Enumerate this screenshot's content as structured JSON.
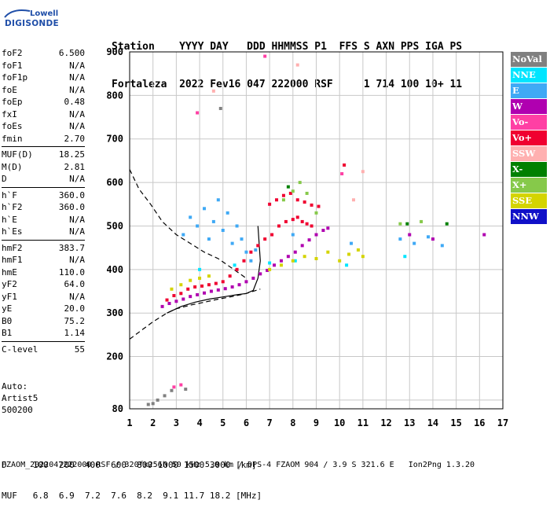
{
  "logo": {
    "line1": "Lowell",
    "line2": "DIGISONDE"
  },
  "header": {
    "line1": "Station    YYYY DAY   DDD HHMMSS P1  FFS S AXN PPS IGA PS",
    "line2": "Fortaleza  2022 Fev16 047 222000 RSF     1 714 100 10+ 11"
  },
  "params": {
    "group1": [
      {
        "label": "foF2",
        "value": "6.500"
      },
      {
        "label": "foF1",
        "value": "N/A"
      },
      {
        "label": "foF1p",
        "value": "N/A"
      },
      {
        "label": "foE",
        "value": "N/A"
      },
      {
        "label": "foEp",
        "value": "0.48"
      },
      {
        "label": "fxI",
        "value": "N/A"
      },
      {
        "label": "foEs",
        "value": "N/A"
      },
      {
        "label": "fmin",
        "value": "2.70"
      }
    ],
    "group2": [
      {
        "label": "MUF(D)",
        "value": "18.25"
      },
      {
        "label": "M(D)",
        "value": "2.81"
      },
      {
        "label": "D",
        "value": "N/A"
      }
    ],
    "group3": [
      {
        "label": "h`F",
        "value": "360.0"
      },
      {
        "label": "h`F2",
        "value": "360.0"
      },
      {
        "label": "h`E",
        "value": "N/A"
      },
      {
        "label": "h`Es",
        "value": "N/A"
      }
    ],
    "group4": [
      {
        "label": "hmF2",
        "value": "383.7"
      },
      {
        "label": "hmF1",
        "value": "N/A"
      },
      {
        "label": "hmE",
        "value": "110.0"
      },
      {
        "label": "yF2",
        "value": "64.0"
      },
      {
        "label": "yF1",
        "value": "N/A"
      },
      {
        "label": "yE",
        "value": "20.0"
      },
      {
        "label": "B0",
        "value": "75.2"
      },
      {
        "label": "B1",
        "value": "1.14"
      }
    ],
    "group5": [
      {
        "label": "C-level",
        "value": "55"
      }
    ]
  },
  "auto": {
    "line1": "Auto:",
    "line2": "Artist5",
    "line3": "500200"
  },
  "legend": [
    {
      "label": "NoVal",
      "color": "#808080"
    },
    {
      "label": "NNE",
      "color": "#00e5ff"
    },
    {
      "label": "E",
      "color": "#3fa9f5"
    },
    {
      "label": "W",
      "color": "#b000b0"
    },
    {
      "label": "Vo-",
      "color": "#ff3fa4"
    },
    {
      "label": "Vo+",
      "color": "#f00030"
    },
    {
      "label": "SSW",
      "color": "#ffb0b0"
    },
    {
      "label": "X-",
      "color": "#008000"
    },
    {
      "label": "X+",
      "color": "#86c94a"
    },
    {
      "label": "SSE",
      "color": "#d4d400"
    },
    {
      "label": "NNW",
      "color": "#1010c8"
    }
  ],
  "footer": {
    "line1": "D     100  200  400  600  800 1000 1500 3000 [km]",
    "line2": "MUF   6.8  6.9  7.2  7.6  8.2  9.1 11.7 18.2 [MHz]",
    "line3": "FZAOM_2022047222000.RSF / 320fx256h 50 kHz 5.0 km / DPS-4 FZAOM 904 / 3.9 S 321.6 E   Ion2Png 1.3.20"
  },
  "chart_data": {
    "type": "scatter",
    "title": "",
    "xlabel": "",
    "ylabel": "",
    "xlim": [
      1,
      17
    ],
    "ylim": [
      80,
      900
    ],
    "x_ticks": [
      1,
      2,
      3,
      4,
      5,
      6,
      7,
      8,
      9,
      10,
      11,
      12,
      13,
      14,
      15,
      16,
      17
    ],
    "y_ticks": [
      80,
      200,
      300,
      400,
      500,
      600,
      700,
      800,
      900
    ],
    "grid": true,
    "legend_position": "right",
    "series": [
      {
        "name": "Vo+",
        "color": "#f00030",
        "points": [
          [
            2.6,
            330
          ],
          [
            2.9,
            340
          ],
          [
            3.2,
            345
          ],
          [
            3.5,
            355
          ],
          [
            3.8,
            360
          ],
          [
            4.1,
            362
          ],
          [
            4.4,
            365
          ],
          [
            4.7,
            368
          ],
          [
            5.0,
            372
          ],
          [
            5.3,
            385
          ],
          [
            5.6,
            400
          ],
          [
            5.9,
            420
          ],
          [
            6.2,
            440
          ],
          [
            6.5,
            455
          ],
          [
            6.8,
            470
          ],
          [
            7.1,
            480
          ],
          [
            7.4,
            500
          ],
          [
            7.7,
            510
          ],
          [
            8.0,
            515
          ],
          [
            8.2,
            520
          ],
          [
            8.4,
            510
          ],
          [
            8.6,
            505
          ],
          [
            8.8,
            500
          ],
          [
            7.0,
            550
          ],
          [
            7.3,
            560
          ],
          [
            7.6,
            570
          ],
          [
            7.9,
            575
          ],
          [
            8.2,
            560
          ],
          [
            8.5,
            555
          ],
          [
            8.8,
            548
          ],
          [
            9.1,
            545
          ],
          [
            10.2,
            640
          ]
        ]
      },
      {
        "name": "W",
        "color": "#b000b0",
        "points": [
          [
            2.4,
            315
          ],
          [
            2.7,
            322
          ],
          [
            3.0,
            327
          ],
          [
            3.3,
            332
          ],
          [
            3.6,
            338
          ],
          [
            3.9,
            342
          ],
          [
            4.2,
            346
          ],
          [
            4.5,
            350
          ],
          [
            4.8,
            353
          ],
          [
            5.1,
            356
          ],
          [
            5.4,
            360
          ],
          [
            5.7,
            365
          ],
          [
            6.0,
            372
          ],
          [
            6.3,
            380
          ],
          [
            6.6,
            390
          ],
          [
            6.9,
            398
          ],
          [
            7.2,
            410
          ],
          [
            7.5,
            420
          ],
          [
            7.8,
            430
          ],
          [
            8.1,
            440
          ],
          [
            8.4,
            455
          ],
          [
            8.7,
            468
          ],
          [
            9.0,
            480
          ],
          [
            9.3,
            490
          ],
          [
            9.5,
            495
          ],
          [
            13.0,
            480
          ],
          [
            14.0,
            470
          ],
          [
            16.2,
            480
          ]
        ]
      },
      {
        "name": "E",
        "color": "#3fa9f5",
        "points": [
          [
            3.3,
            480
          ],
          [
            3.6,
            520
          ],
          [
            3.9,
            500
          ],
          [
            4.2,
            540
          ],
          [
            4.4,
            470
          ],
          [
            4.6,
            510
          ],
          [
            4.8,
            560
          ],
          [
            5.0,
            490
          ],
          [
            5.2,
            530
          ],
          [
            5.4,
            460
          ],
          [
            5.6,
            500
          ],
          [
            5.8,
            470
          ],
          [
            6.0,
            440
          ],
          [
            6.2,
            420
          ],
          [
            6.4,
            445
          ],
          [
            8.0,
            480
          ],
          [
            10.5,
            460
          ],
          [
            12.6,
            470
          ],
          [
            13.2,
            460
          ],
          [
            13.8,
            475
          ],
          [
            14.4,
            455
          ]
        ]
      },
      {
        "name": "NNE",
        "color": "#00e5ff",
        "points": [
          [
            4.0,
            400
          ],
          [
            5.5,
            410
          ],
          [
            7.0,
            415
          ],
          [
            8.1,
            420
          ],
          [
            10.3,
            410
          ],
          [
            12.8,
            430
          ]
        ]
      },
      {
        "name": "SSE",
        "color": "#d4d400",
        "points": [
          [
            2.8,
            355
          ],
          [
            3.2,
            365
          ],
          [
            3.6,
            375
          ],
          [
            4.0,
            380
          ],
          [
            4.4,
            385
          ],
          [
            7.0,
            400
          ],
          [
            7.5,
            410
          ],
          [
            8.0,
            420
          ],
          [
            8.5,
            430
          ],
          [
            9.0,
            425
          ],
          [
            9.5,
            440
          ],
          [
            10.0,
            420
          ],
          [
            10.4,
            435
          ],
          [
            10.8,
            445
          ],
          [
            11.0,
            430
          ]
        ]
      },
      {
        "name": "X+",
        "color": "#86c94a",
        "points": [
          [
            7.6,
            560
          ],
          [
            8.0,
            580
          ],
          [
            8.3,
            600
          ],
          [
            8.6,
            575
          ],
          [
            9.0,
            530
          ],
          [
            12.6,
            505
          ],
          [
            13.5,
            510
          ]
        ]
      },
      {
        "name": "X-",
        "color": "#008000",
        "points": [
          [
            7.8,
            590
          ],
          [
            12.9,
            505
          ],
          [
            14.6,
            505
          ]
        ]
      },
      {
        "name": "SSW",
        "color": "#ffb0b0",
        "points": [
          [
            8.2,
            870
          ],
          [
            4.6,
            810
          ],
          [
            11.0,
            625
          ],
          [
            10.6,
            560
          ]
        ]
      },
      {
        "name": "Vo-",
        "color": "#ff3fa4",
        "points": [
          [
            6.8,
            890
          ],
          [
            3.9,
            760
          ],
          [
            2.9,
            130
          ],
          [
            3.2,
            135
          ],
          [
            10.1,
            620
          ]
        ]
      },
      {
        "name": "NoVal",
        "color": "#808080",
        "points": [
          [
            1.8,
            90
          ],
          [
            2.0,
            92
          ],
          [
            2.2,
            100
          ],
          [
            2.5,
            110
          ],
          [
            2.8,
            122
          ],
          [
            3.4,
            125
          ],
          [
            4.9,
            770
          ]
        ]
      }
    ],
    "curves": [
      {
        "style": "dashed",
        "points": [
          [
            1.0,
            630
          ],
          [
            1.4,
            585
          ],
          [
            1.9,
            550
          ],
          [
            2.4,
            510
          ],
          [
            3.0,
            480
          ],
          [
            3.6,
            460
          ],
          [
            4.2,
            440
          ],
          [
            4.8,
            425
          ],
          [
            5.2,
            410
          ],
          [
            5.6,
            395
          ],
          [
            6.0,
            380
          ]
        ]
      },
      {
        "style": "dashed",
        "points": [
          [
            1.0,
            240
          ],
          [
            1.5,
            260
          ],
          [
            2.0,
            280
          ],
          [
            2.6,
            300
          ],
          [
            3.0,
            310
          ],
          [
            3.6,
            318
          ],
          [
            4.2,
            325
          ],
          [
            4.8,
            332
          ],
          [
            5.4,
            338
          ],
          [
            6.0,
            345
          ],
          [
            6.6,
            355
          ]
        ]
      },
      {
        "style": "solid",
        "points": [
          [
            2.6,
            300
          ],
          [
            3.2,
            315
          ],
          [
            3.8,
            325
          ],
          [
            4.4,
            332
          ],
          [
            5.0,
            337
          ],
          [
            5.6,
            342
          ],
          [
            6.0,
            345
          ],
          [
            6.3,
            352
          ],
          [
            6.5,
            380
          ],
          [
            6.6,
            420
          ],
          [
            6.55,
            460
          ],
          [
            6.5,
            500
          ]
        ]
      }
    ]
  }
}
